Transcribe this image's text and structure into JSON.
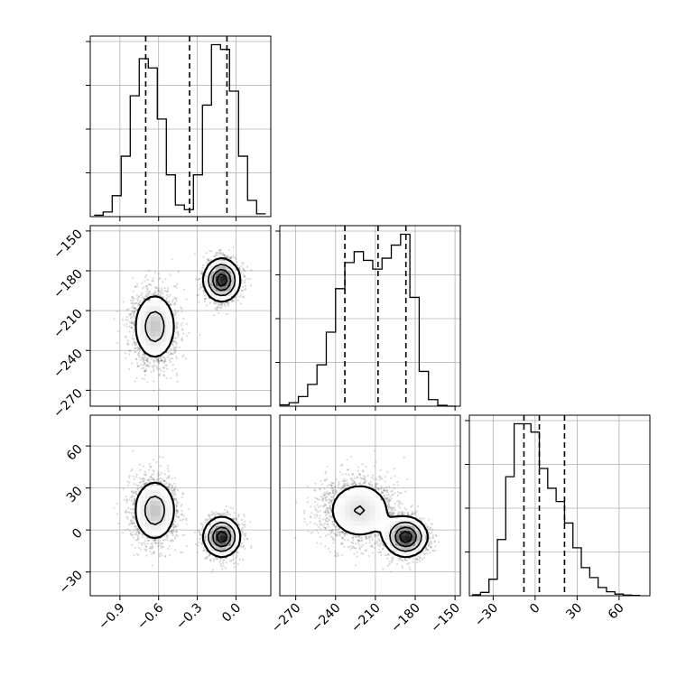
{
  "chart_data": {
    "type": "corner",
    "grid": true,
    "colors": {
      "ink": "#000000",
      "grid": "#b0b0b0",
      "points": "#555555"
    },
    "params": [
      {
        "ticks": [
          -0.9,
          -0.6,
          -0.3,
          0.0
        ],
        "tick_labels": [
          "−0.9",
          "−0.6",
          "−0.3",
          "0.0"
        ],
        "range": [
          -1.13,
          0.27
        ],
        "quantiles": [
          -0.7,
          -0.36,
          -0.07
        ]
      },
      {
        "ticks": [
          -270,
          -240,
          -210,
          -180,
          -150
        ],
        "tick_labels": [
          "−270",
          "−240",
          "−210",
          "−180",
          "−150"
        ],
        "range": [
          -282,
          -146
        ],
        "quantiles": [
          -233,
          -208,
          -187
        ]
      },
      {
        "ticks": [
          -30,
          0,
          30,
          60
        ],
        "tick_labels": [
          "−30",
          "0",
          "30",
          "60"
        ],
        "range": [
          -47,
          82
        ],
        "quantiles": [
          -8,
          3,
          21
        ]
      }
    ],
    "histograms": [
      {
        "param": 0,
        "bin_edges": [
          -1.1,
          -1.03,
          -0.96,
          -0.89,
          -0.82,
          -0.75,
          -0.68,
          -0.61,
          -0.54,
          -0.47,
          -0.4,
          -0.33,
          -0.26,
          -0.19,
          -0.12,
          -0.05,
          0.02,
          0.09,
          0.16,
          0.23
        ],
        "counts": [
          0.3,
          1.0,
          4.5,
          13,
          26,
          34,
          32,
          21,
          9,
          2.5,
          1.5,
          9,
          24,
          37,
          36,
          27,
          13,
          3.5,
          0.6
        ]
      },
      {
        "param": 1,
        "bin_edges": [
          -282,
          -275,
          -268,
          -261,
          -254,
          -247,
          -240,
          -233,
          -226,
          -219,
          -212,
          -205,
          -198,
          -191,
          -184,
          -177,
          -170,
          -163,
          -156,
          -149
        ],
        "counts": [
          0.3,
          0.8,
          2.2,
          5,
          9.5,
          17,
          27,
          33,
          35.5,
          33.5,
          31.5,
          34,
          37,
          39.5,
          25,
          8,
          1.5,
          0.2,
          0.0
        ]
      },
      {
        "param": 2,
        "bin_edges": [
          -45,
          -39,
          -33,
          -27,
          -21,
          -15,
          -9,
          -3,
          3,
          9,
          15,
          21,
          27,
          33,
          39,
          45,
          51,
          57,
          63,
          69,
          75
        ],
        "counts": [
          0.3,
          1.0,
          5,
          17,
          36,
          52,
          52,
          49.5,
          38.5,
          32.5,
          28.5,
          22,
          14.5,
          8.5,
          5.5,
          2.5,
          1.2,
          0.5,
          0.2,
          0.1
        ]
      }
    ],
    "joint_modes": [
      {
        "weight": 0.52,
        "mean": [
          -0.63,
          -222,
          14
        ],
        "sd": [
          0.09,
          14,
          12
        ]
      },
      {
        "weight": 0.48,
        "mean": [
          -0.11,
          -187,
          -5
        ],
        "sd": [
          0.07,
          8,
          7
        ]
      }
    ]
  }
}
